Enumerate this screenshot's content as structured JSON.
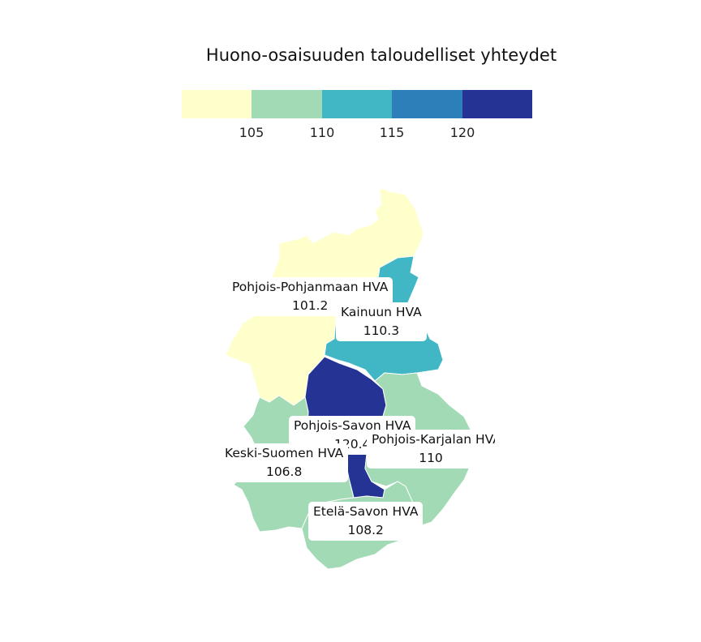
{
  "title": "Huono-osaisuuden taloudelliset yhteydet",
  "legend": {
    "colors": [
      "#ffffcc",
      "#a1dab4",
      "#41b6c4",
      "#2c7fb8",
      "#253494"
    ],
    "ticks": [
      "105",
      "110",
      "115",
      "120"
    ]
  },
  "regions": [
    {
      "name": "Pohjois-Pohjanmaan HVA",
      "value": "101.2",
      "color": "#ffffcc"
    },
    {
      "name": "Kainuun HVA",
      "value": "110.3",
      "color": "#41b6c4"
    },
    {
      "name": "Pohjois-Savon HVA",
      "value": "120.4",
      "color": "#253494"
    },
    {
      "name": "Keski-Suomen HVA",
      "value": "106.8",
      "color": "#a1dab4"
    },
    {
      "name": "Pohjois-Karjalan HVA",
      "value": "110",
      "color": "#a1dab4"
    },
    {
      "name": "Etelä-Savon HVA",
      "value": "108.2",
      "color": "#a1dab4"
    }
  ]
}
